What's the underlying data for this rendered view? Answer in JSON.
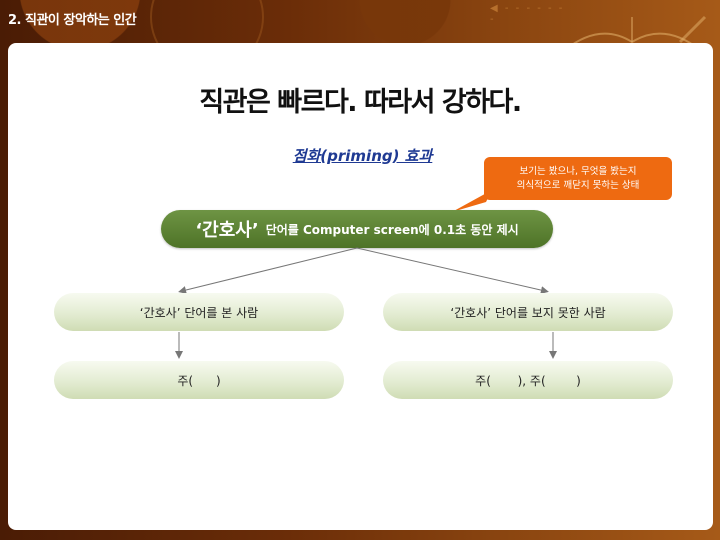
{
  "header": {
    "section_title": "2. 직관이 장악하는 인간"
  },
  "slide": {
    "title": "직관은 빠르다. 따라서 강하다.",
    "subtitle": "점화(priming) 효과",
    "callout": {
      "line1": "보기는 봤으나, 무엇을 봤는지",
      "line2": "의식적으로 깨닫지 못하는 상태"
    },
    "main_box": {
      "quoted": "‘간호사’",
      "rest": "단어를 Computer screen에 0.1초 동안 제시"
    },
    "left_branch": {
      "label": "‘간호사’ 단어를 본 사람",
      "result": "주(      )"
    },
    "right_branch": {
      "label": "‘간호사’ 단어를 보지 못한 사람",
      "result": "주(       ), 주(        )"
    }
  },
  "colors": {
    "background": "#6b2d08",
    "callout": "#ee6a11",
    "main_box": "#5a8033",
    "subtitle": "#1f3a93",
    "branch_box": "#e3ecd2"
  }
}
